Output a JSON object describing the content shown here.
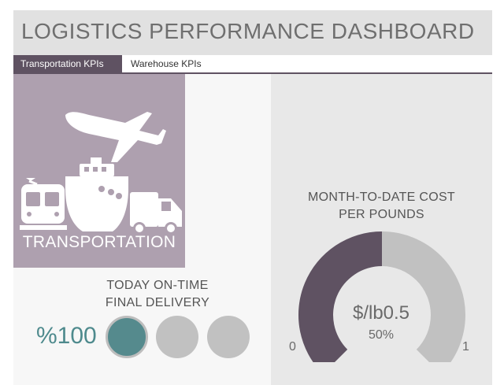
{
  "header": {
    "title": "LOGISTICS PERFORMANCE DASHBOARD"
  },
  "tabs": [
    {
      "label": "Transportation KPIs",
      "active": true
    },
    {
      "label": "Warehouse KPIs",
      "active": false
    }
  ],
  "transport_tile": {
    "label": "TRANSPORTATION",
    "icons": [
      "airplane-icon",
      "train-icon",
      "ship-icon",
      "truck-icon"
    ]
  },
  "on_time_delivery": {
    "title_line1": "TODAY ON-TIME",
    "title_line2": "FINAL DELIVERY",
    "value": "%100",
    "indicators": [
      true,
      false,
      false
    ]
  },
  "cost_gauge": {
    "title_line1": "MONTH-TO-DATE COST",
    "title_line2": "PER POUNDS",
    "value_text": "$/lb0.5",
    "percent_text": "50%",
    "fraction": 0.5,
    "min_label": "0",
    "max_label": "1"
  },
  "colors": {
    "accent": "#5f5262",
    "tile": "#aea0af",
    "teal": "#558a8d",
    "inactive_gray": "#c1c1c1"
  }
}
